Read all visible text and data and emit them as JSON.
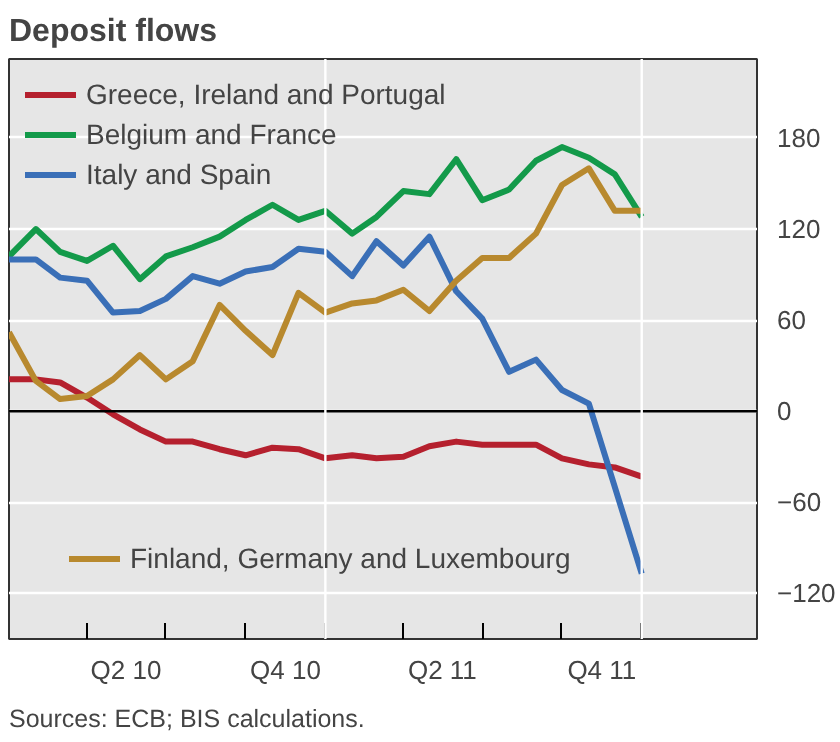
{
  "chart_data": {
    "type": "line",
    "title": "Deposit flows",
    "x": [
      "2010-01",
      "2010-02",
      "2010-03",
      "2010-04",
      "2010-05",
      "2010-06",
      "2010-07",
      "2010-08",
      "2010-09",
      "2010-10",
      "2010-11",
      "2010-12",
      "2011-01",
      "2011-02",
      "2011-03",
      "2011-04",
      "2011-05",
      "2011-06",
      "2011-07",
      "2011-08",
      "2011-09",
      "2011-10",
      "2011-11",
      "2011-12",
      "2012-01"
    ],
    "series": [
      {
        "name": "Greece, Ireland and Portugal",
        "color": "#b5202e",
        "values": [
          21,
          21,
          19,
          9,
          -2,
          -12,
          -20,
          -20,
          -25,
          -29,
          -24,
          -25,
          -31,
          -29,
          -31,
          -30,
          -23,
          -20,
          -22,
          -22,
          -22,
          -31,
          -35,
          -37,
          -43
        ]
      },
      {
        "name": "Belgium and France",
        "color": "#139a4a",
        "values": [
          102,
          120,
          105,
          99,
          109,
          87,
          102,
          108,
          115,
          126,
          136,
          126,
          132,
          117,
          128,
          145,
          143,
          166,
          139,
          146,
          165,
          174,
          167,
          156,
          128
        ]
      },
      {
        "name": "Italy and Spain",
        "color": "#3a6fb7",
        "values": [
          100,
          100,
          88,
          86,
          65,
          66,
          74,
          89,
          84,
          92,
          95,
          107,
          105,
          89,
          112,
          96,
          115,
          79,
          61,
          26,
          34,
          14,
          5,
          -50,
          -107
        ]
      },
      {
        "name": "Finland, Germany and Luxembourg",
        "color": "#b8892e",
        "values": [
          52,
          20,
          8,
          10,
          21,
          37,
          21,
          33,
          70,
          53,
          37,
          78,
          65,
          71,
          73,
          80,
          66,
          86,
          101,
          101,
          117,
          149,
          160,
          132,
          132
        ]
      }
    ],
    "xlim": [
      "2010-01",
      "2012-05-13"
    ],
    "xticks": [
      {
        "value": "2010-04",
        "label": null
      },
      {
        "value": "2010-05-16",
        "label": "Q2 10"
      },
      {
        "value": "2010-07",
        "label": null
      },
      {
        "value": "2010-10",
        "label": null
      },
      {
        "value": "2010-11-16",
        "label": "Q4 10"
      },
      {
        "value": "2011-01",
        "label": null
      },
      {
        "value": "2011-04",
        "label": null
      },
      {
        "value": "2011-05-16",
        "label": "Q2 11"
      },
      {
        "value": "2011-07",
        "label": null
      },
      {
        "value": "2011-10",
        "label": null
      },
      {
        "value": "2011-11-16",
        "label": "Q4 11"
      },
      {
        "value": "2012-01",
        "label": null
      }
    ],
    "ylim": [
      -150,
      232
    ],
    "yticks": [
      -120,
      -60,
      0,
      60,
      120,
      180
    ],
    "ref_lines": [
      {
        "axis": "y",
        "value": 0,
        "color": "#000000"
      },
      {
        "axis": "x",
        "value": "2011-01",
        "color": "#ffffff"
      },
      {
        "axis": "x",
        "value": "2012-01",
        "color": "#ffffff"
      }
    ],
    "grid": "y",
    "legend": "top left",
    "line_style": "solid",
    "annotations": [
      "Sources: ECB; BIS calculations."
    ]
  }
}
